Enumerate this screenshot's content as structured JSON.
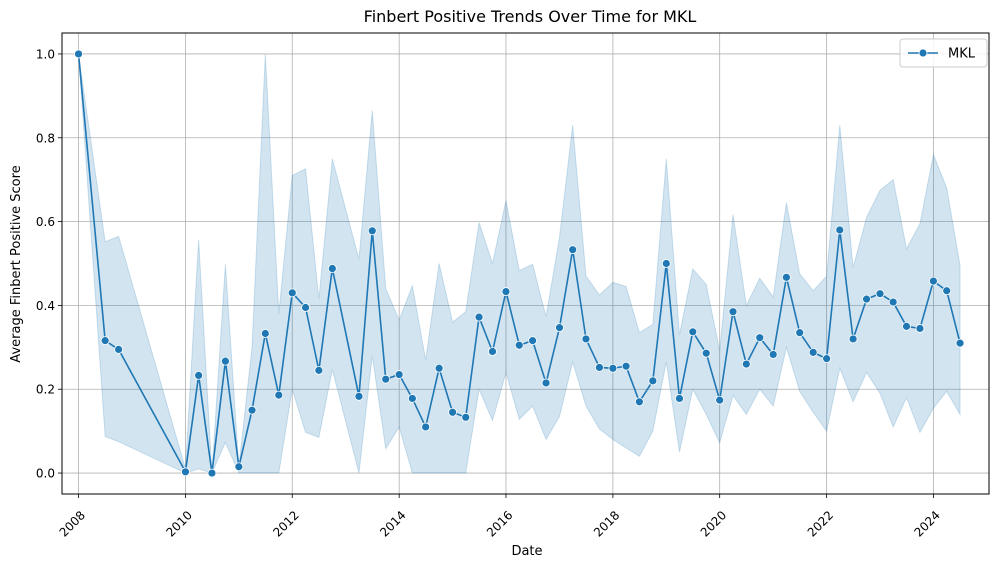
{
  "chart_data": {
    "type": "line",
    "title": "Finbert Positive Trends Over Time for MKL",
    "xlabel": "Date",
    "ylabel": "Average Finbert Positive Score",
    "xlim": [
      "2007-09-10",
      "2025-01-15"
    ],
    "ylim": [
      -0.05,
      1.05
    ],
    "grid": true,
    "legend_position": "top-right",
    "x_ticks": [
      {
        "date": "2008-01-01",
        "label": "2008"
      },
      {
        "date": "2010-01-01",
        "label": "2010"
      },
      {
        "date": "2012-01-01",
        "label": "2012"
      },
      {
        "date": "2014-01-01",
        "label": "2014"
      },
      {
        "date": "2016-01-01",
        "label": "2016"
      },
      {
        "date": "2018-01-01",
        "label": "2018"
      },
      {
        "date": "2020-01-01",
        "label": "2020"
      },
      {
        "date": "2022-01-01",
        "label": "2022"
      },
      {
        "date": "2024-01-01",
        "label": "2024"
      }
    ],
    "y_ticks": [
      {
        "value": 0.0,
        "label": "0.0"
      },
      {
        "value": 0.2,
        "label": "0.2"
      },
      {
        "value": 0.4,
        "label": "0.4"
      },
      {
        "value": 0.6,
        "label": "0.6"
      },
      {
        "value": 0.8,
        "label": "0.8"
      },
      {
        "value": 1.0,
        "label": "1.0"
      }
    ],
    "series": [
      {
        "name": "MKL",
        "color": "#1f77b4",
        "band_color": "#1f77b4",
        "points": [
          {
            "x": "2008-01-01",
            "y": 1.0,
            "lo": 1.0,
            "hi": 1.0
          },
          {
            "x": "2008-07-01",
            "y": 0.316,
            "lo": 0.087,
            "hi": 0.552
          },
          {
            "x": "2008-10-01",
            "y": 0.295,
            "lo": 0.075,
            "hi": 0.565
          },
          {
            "x": "2010-01-01",
            "y": 0.003,
            "lo": 0.0,
            "hi": 0.01
          },
          {
            "x": "2010-04-01",
            "y": 0.233,
            "lo": 0.01,
            "hi": 0.557
          },
          {
            "x": "2010-07-01",
            "y": 0.0,
            "lo": 0.0,
            "hi": 0.0
          },
          {
            "x": "2010-10-01",
            "y": 0.267,
            "lo": 0.073,
            "hi": 0.498
          },
          {
            "x": "2011-01-01",
            "y": 0.015,
            "lo": 0.0,
            "hi": 0.015
          },
          {
            "x": "2011-04-01",
            "y": 0.15,
            "lo": 0.0,
            "hi": 0.3
          },
          {
            "x": "2011-07-01",
            "y": 0.333,
            "lo": 0.0,
            "hi": 1.0
          },
          {
            "x": "2011-10-01",
            "y": 0.186,
            "lo": 0.0,
            "hi": 0.38
          },
          {
            "x": "2012-01-01",
            "y": 0.43,
            "lo": 0.2,
            "hi": 0.71
          },
          {
            "x": "2012-04-01",
            "y": 0.395,
            "lo": 0.097,
            "hi": 0.726
          },
          {
            "x": "2012-07-01",
            "y": 0.245,
            "lo": 0.085,
            "hi": 0.415
          },
          {
            "x": "2012-10-01",
            "y": 0.488,
            "lo": 0.247,
            "hi": 0.75
          },
          {
            "x": "2013-04-01",
            "y": 0.183,
            "lo": 0.0,
            "hi": 0.51
          },
          {
            "x": "2013-07-01",
            "y": 0.578,
            "lo": 0.28,
            "hi": 0.865
          },
          {
            "x": "2013-10-01",
            "y": 0.224,
            "lo": 0.058,
            "hi": 0.44
          },
          {
            "x": "2014-01-01",
            "y": 0.235,
            "lo": 0.11,
            "hi": 0.365
          },
          {
            "x": "2014-04-01",
            "y": 0.178,
            "lo": 0.0,
            "hi": 0.447
          },
          {
            "x": "2014-07-01",
            "y": 0.11,
            "lo": 0.0,
            "hi": 0.27
          },
          {
            "x": "2014-10-01",
            "y": 0.25,
            "lo": 0.0,
            "hi": 0.5
          },
          {
            "x": "2015-01-01",
            "y": 0.145,
            "lo": 0.0,
            "hi": 0.36
          },
          {
            "x": "2015-04-01",
            "y": 0.133,
            "lo": 0.0,
            "hi": 0.385
          },
          {
            "x": "2015-07-01",
            "y": 0.372,
            "lo": 0.2,
            "hi": 0.598
          },
          {
            "x": "2015-10-01",
            "y": 0.29,
            "lo": 0.125,
            "hi": 0.5
          },
          {
            "x": "2016-01-01",
            "y": 0.433,
            "lo": 0.24,
            "hi": 0.65
          },
          {
            "x": "2016-04-01",
            "y": 0.305,
            "lo": 0.128,
            "hi": 0.483
          },
          {
            "x": "2016-07-01",
            "y": 0.316,
            "lo": 0.16,
            "hi": 0.498
          },
          {
            "x": "2016-10-01",
            "y": 0.215,
            "lo": 0.08,
            "hi": 0.373
          },
          {
            "x": "2017-01-01",
            "y": 0.347,
            "lo": 0.135,
            "hi": 0.563
          },
          {
            "x": "2017-04-01",
            "y": 0.533,
            "lo": 0.265,
            "hi": 0.83
          },
          {
            "x": "2017-07-01",
            "y": 0.32,
            "lo": 0.16,
            "hi": 0.47
          },
          {
            "x": "2017-10-01",
            "y": 0.252,
            "lo": 0.105,
            "hi": 0.425
          },
          {
            "x": "2018-01-01",
            "y": 0.25,
            "lo": 0.08,
            "hi": 0.455
          },
          {
            "x": "2018-04-01",
            "y": 0.255,
            "lo": 0.06,
            "hi": 0.445
          },
          {
            "x": "2018-07-01",
            "y": 0.17,
            "lo": 0.04,
            "hi": 0.335
          },
          {
            "x": "2018-10-01",
            "y": 0.22,
            "lo": 0.1,
            "hi": 0.355
          },
          {
            "x": "2019-01-01",
            "y": 0.5,
            "lo": 0.265,
            "hi": 0.75
          },
          {
            "x": "2019-04-01",
            "y": 0.178,
            "lo": 0.05,
            "hi": 0.33
          },
          {
            "x": "2019-07-01",
            "y": 0.337,
            "lo": 0.2,
            "hi": 0.487
          },
          {
            "x": "2019-10-01",
            "y": 0.286,
            "lo": 0.14,
            "hi": 0.45
          },
          {
            "x": "2020-01-01",
            "y": 0.174,
            "lo": 0.072,
            "hi": 0.292
          },
          {
            "x": "2020-04-01",
            "y": 0.385,
            "lo": 0.185,
            "hi": 0.617
          },
          {
            "x": "2020-07-01",
            "y": 0.26,
            "lo": 0.14,
            "hi": 0.4
          },
          {
            "x": "2020-10-01",
            "y": 0.323,
            "lo": 0.2,
            "hi": 0.465
          },
          {
            "x": "2021-01-01",
            "y": 0.283,
            "lo": 0.16,
            "hi": 0.42
          },
          {
            "x": "2021-04-01",
            "y": 0.467,
            "lo": 0.3,
            "hi": 0.645
          },
          {
            "x": "2021-07-01",
            "y": 0.335,
            "lo": 0.195,
            "hi": 0.475
          },
          {
            "x": "2021-10-01",
            "y": 0.288,
            "lo": 0.145,
            "hi": 0.435
          },
          {
            "x": "2022-01-01",
            "y": 0.273,
            "lo": 0.1,
            "hi": 0.47
          },
          {
            "x": "2022-04-01",
            "y": 0.58,
            "lo": 0.25,
            "hi": 0.83
          },
          {
            "x": "2022-07-01",
            "y": 0.32,
            "lo": 0.17,
            "hi": 0.49
          },
          {
            "x": "2022-10-01",
            "y": 0.415,
            "lo": 0.24,
            "hi": 0.61
          },
          {
            "x": "2023-01-01",
            "y": 0.428,
            "lo": 0.19,
            "hi": 0.675
          },
          {
            "x": "2023-04-01",
            "y": 0.408,
            "lo": 0.11,
            "hi": 0.7
          },
          {
            "x": "2023-07-01",
            "y": 0.35,
            "lo": 0.18,
            "hi": 0.535
          },
          {
            "x": "2023-10-01",
            "y": 0.345,
            "lo": 0.097,
            "hi": 0.595
          },
          {
            "x": "2024-01-01",
            "y": 0.458,
            "lo": 0.155,
            "hi": 0.76
          },
          {
            "x": "2024-04-01",
            "y": 0.435,
            "lo": 0.195,
            "hi": 0.68
          },
          {
            "x": "2024-07-01",
            "y": 0.31,
            "lo": 0.14,
            "hi": 0.495
          }
        ]
      }
    ]
  }
}
